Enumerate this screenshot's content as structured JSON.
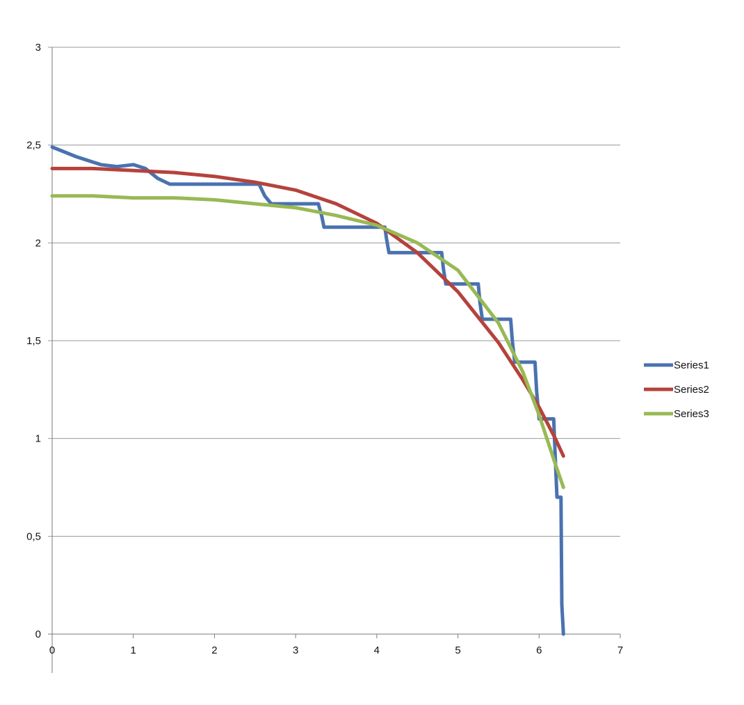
{
  "chart_data": {
    "type": "line",
    "title": "",
    "xlabel": "",
    "ylabel": "",
    "xlim": [
      0,
      7
    ],
    "ylim": [
      0,
      3
    ],
    "x_ticks": [
      "0",
      "1",
      "2",
      "3",
      "4",
      "5",
      "6",
      "7"
    ],
    "y_ticks": [
      "0",
      "0,5",
      "1",
      "1,5",
      "2",
      "2,5",
      "3"
    ],
    "grid": "horizontal",
    "legend_position": "right",
    "series": [
      {
        "name": "Series1",
        "color": "#4a72b0",
        "x": [
          0,
          0.3,
          0.6,
          0.8,
          1.0,
          1.15,
          1.3,
          1.45,
          1.6,
          2.1,
          2.55,
          2.62,
          2.7,
          3.28,
          3.32,
          3.35,
          4.1,
          4.12,
          4.15,
          4.8,
          4.82,
          4.85,
          5.25,
          5.27,
          5.3,
          5.65,
          5.67,
          5.7,
          5.95,
          5.97,
          6.0,
          6.18,
          6.2,
          6.22,
          6.27,
          6.28,
          6.3
        ],
        "y": [
          2.49,
          2.44,
          2.4,
          2.39,
          2.4,
          2.38,
          2.33,
          2.3,
          2.3,
          2.3,
          2.3,
          2.24,
          2.2,
          2.2,
          2.14,
          2.08,
          2.08,
          2.02,
          1.95,
          1.95,
          1.87,
          1.79,
          1.79,
          1.7,
          1.61,
          1.61,
          1.5,
          1.39,
          1.39,
          1.24,
          1.1,
          1.1,
          0.9,
          0.7,
          0.7,
          0.15,
          0.0
        ]
      },
      {
        "name": "Series2",
        "color": "#b5423c",
        "x": [
          0,
          0.5,
          1.0,
          1.5,
          2.0,
          2.5,
          3.0,
          3.5,
          4.0,
          4.5,
          5.0,
          5.5,
          5.8,
          6.0,
          6.2,
          6.3
        ],
        "y": [
          2.38,
          2.38,
          2.37,
          2.36,
          2.34,
          2.31,
          2.27,
          2.2,
          2.1,
          1.95,
          1.75,
          1.49,
          1.3,
          1.16,
          1.0,
          0.91
        ]
      },
      {
        "name": "Series3",
        "color": "#98b954",
        "x": [
          0,
          0.5,
          1.0,
          1.5,
          2.0,
          2.5,
          3.0,
          3.5,
          4.0,
          4.5,
          5.0,
          5.5,
          5.8,
          6.0,
          6.2,
          6.3
        ],
        "y": [
          2.24,
          2.24,
          2.23,
          2.23,
          2.22,
          2.2,
          2.18,
          2.14,
          2.09,
          2.0,
          1.86,
          1.59,
          1.34,
          1.12,
          0.87,
          0.75
        ]
      }
    ]
  }
}
